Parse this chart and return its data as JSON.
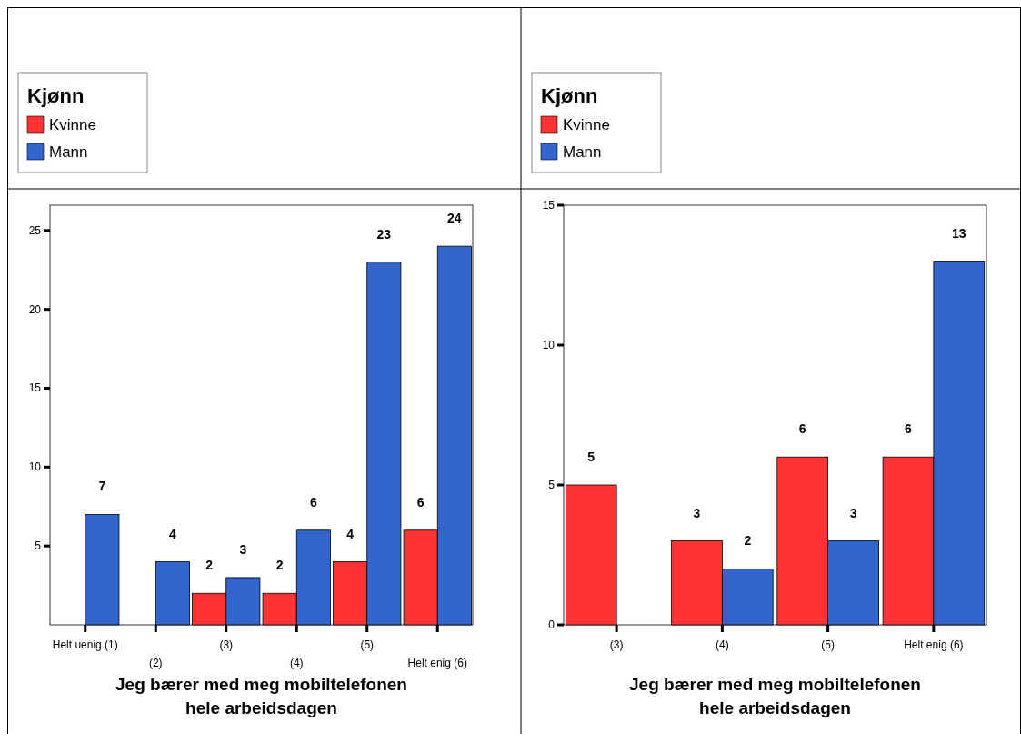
{
  "chart_data": [
    {
      "type": "bar",
      "xlabel": "Jeg bærer med meg mobiltelefonen hele arbeidsdagen",
      "legend_title": "Kjønn",
      "legend": "top left",
      "data_labels": true,
      "categories": [
        "Helt uenig (1)",
        "(2)",
        "(3)",
        "(4)",
        "(5)",
        "Helt enig (6)"
      ],
      "ylim": [
        0,
        26.6
      ],
      "yticks": [
        5,
        10,
        15,
        20,
        25
      ],
      "series": [
        {
          "name": "Kvinne",
          "color": "#ff3333",
          "values": [
            null,
            null,
            2,
            2,
            4,
            6
          ]
        },
        {
          "name": "Mann",
          "color": "#3366cc",
          "values": [
            7,
            4,
            3,
            6,
            23,
            24
          ]
        }
      ]
    },
    {
      "type": "bar",
      "xlabel": "Jeg bærer med meg mobiltelefonen hele arbeidsdagen",
      "legend_title": "Kjønn",
      "legend": "top left",
      "data_labels": true,
      "categories": [
        "(3)",
        "(4)",
        "(5)",
        "Helt enig (6)"
      ],
      "ylim": [
        0,
        15
      ],
      "yticks": [
        0,
        5,
        10,
        15
      ],
      "series": [
        {
          "name": "Kvinne",
          "color": "#ff3333",
          "values": [
            5,
            3,
            6,
            6
          ]
        },
        {
          "name": "Mann",
          "color": "#3366cc",
          "values": [
            null,
            2,
            3,
            13
          ]
        }
      ]
    }
  ]
}
